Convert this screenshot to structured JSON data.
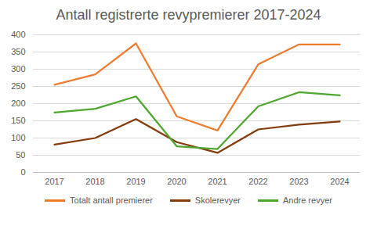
{
  "chart_data": {
    "type": "line",
    "title": "Antall registrerte revypremierer 2017-2024",
    "categories": [
      "2017",
      "2018",
      "2019",
      "2020",
      "2021",
      "2022",
      "2023",
      "2024"
    ],
    "series": [
      {
        "name": "Totalt antall premierer",
        "color": "#ed7d31",
        "values": [
          255,
          285,
          375,
          163,
          122,
          314,
          372,
          372
        ]
      },
      {
        "name": "Skolerevyer",
        "color": "#843c0c",
        "values": [
          81,
          100,
          155,
          88,
          57,
          125,
          139,
          148
        ]
      },
      {
        "name": "Andre revyer",
        "color": "#4ea72e",
        "values": [
          174,
          185,
          221,
          76,
          68,
          192,
          233,
          224
        ]
      }
    ],
    "ylim": [
      0,
      400
    ],
    "yticks": [
      0,
      50,
      100,
      150,
      200,
      250,
      300,
      350,
      400
    ],
    "grid": true,
    "legend": "bottom"
  }
}
